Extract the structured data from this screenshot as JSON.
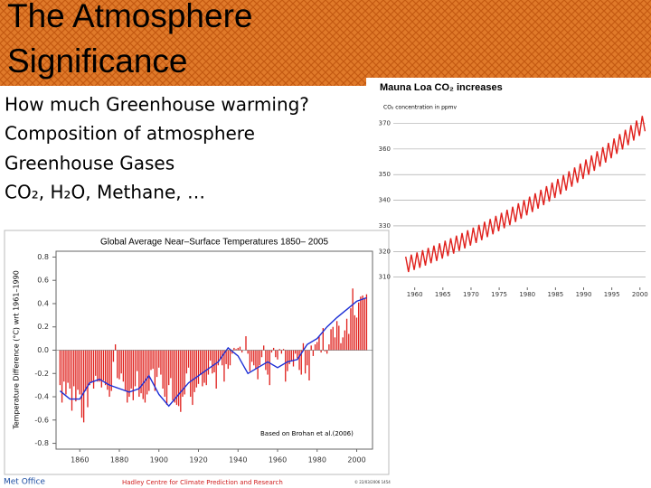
{
  "slide": {
    "title_lines": [
      "The Atmosphere",
      "Significance"
    ],
    "bullets": [
      "How much Greenhouse warming?",
      "Composition of atmosphere",
      "Greenhouse Gases",
      "CO₂, H₂O, Methane, …"
    ],
    "footer": {
      "left": "Met Office",
      "center": "Hadley Centre for Climate Prediction and Research",
      "stamp": "© 22/03/2006 1454"
    }
  },
  "chart_data": [
    {
      "type": "line",
      "title": "Mauna Loa CO₂ increases",
      "y_label": "CO₂ concentration in ppmv",
      "x": [
        1958.4,
        1958.9,
        1959.4,
        1959.9,
        1960.4,
        1960.9,
        1961.4,
        1961.9,
        1962.4,
        1962.9,
        1963.4,
        1963.9,
        1964.4,
        1964.9,
        1965.4,
        1965.9,
        1966.4,
        1966.9,
        1967.4,
        1967.9,
        1968.4,
        1968.9,
        1969.4,
        1969.9,
        1970.4,
        1970.9,
        1971.4,
        1971.9,
        1972.4,
        1972.9,
        1973.4,
        1973.9,
        1974.4,
        1974.9,
        1975.4,
        1975.9,
        1976.4,
        1976.9,
        1977.4,
        1977.9,
        1978.4,
        1978.9,
        1979.4,
        1979.9,
        1980.4,
        1980.9,
        1981.4,
        1981.9,
        1982.4,
        1982.9,
        1983.4,
        1983.9,
        1984.4,
        1984.9,
        1985.4,
        1985.9,
        1986.4,
        1986.9,
        1987.4,
        1987.9,
        1988.4,
        1988.9,
        1989.4,
        1989.9,
        1990.4,
        1990.9,
        1991.4,
        1991.9,
        1992.4,
        1992.9,
        1993.4,
        1993.9,
        1994.4,
        1994.9,
        1995.4,
        1995.9,
        1996.4,
        1996.9,
        1997.4,
        1997.9,
        1998.4,
        1998.9,
        1999.4,
        1999.9,
        2000.4,
        2000.9
      ],
      "series": [
        {
          "color": "#e0201c",
          "values": [
            318.0,
            312.0,
            318.8,
            312.8,
            319.6,
            313.6,
            320.5,
            314.5,
            321.4,
            315.4,
            322.3,
            316.3,
            323.2,
            317.2,
            324.2,
            318.2,
            325.2,
            319.2,
            326.2,
            320.2,
            327.2,
            321.2,
            328.3,
            322.3,
            329.3,
            323.3,
            330.4,
            324.4,
            331.6,
            325.6,
            332.7,
            326.7,
            333.9,
            327.9,
            335.1,
            329.1,
            336.3,
            330.3,
            337.5,
            331.5,
            338.8,
            332.8,
            340.1,
            334.1,
            341.4,
            335.4,
            342.7,
            336.7,
            344.1,
            338.1,
            345.5,
            339.5,
            346.9,
            340.9,
            348.3,
            342.3,
            349.8,
            343.8,
            351.3,
            345.3,
            352.8,
            346.8,
            354.3,
            348.3,
            355.9,
            349.9,
            357.5,
            351.5,
            359.1,
            353.1,
            360.7,
            354.7,
            362.4,
            356.4,
            364.1,
            358.1,
            365.8,
            359.8,
            367.5,
            361.5,
            369.3,
            363.3,
            371.1,
            365.1,
            372.9,
            366.9
          ]
        }
      ],
      "xlim": [
        1957,
        2001
      ],
      "xticks": [
        1960,
        1965,
        1970,
        1975,
        1980,
        1985,
        1990,
        1995,
        2000
      ],
      "ylim": [
        306,
        373
      ],
      "yticks": [
        310,
        320,
        330,
        340,
        350,
        360,
        370
      ],
      "grid": true
    },
    {
      "type": "bar",
      "title": "Global Average Near–Surface Temperatures 1850– 2005",
      "y_label": "Temperature Difference (°C) wrt 1961–1990",
      "annotation": "Based on Brohan et al.(2006)",
      "x": [
        1850,
        1851,
        1852,
        1853,
        1854,
        1855,
        1856,
        1857,
        1858,
        1859,
        1860,
        1861,
        1862,
        1863,
        1864,
        1865,
        1866,
        1867,
        1868,
        1869,
        1870,
        1871,
        1872,
        1873,
        1874,
        1875,
        1876,
        1877,
        1878,
        1879,
        1880,
        1881,
        1882,
        1883,
        1884,
        1885,
        1886,
        1887,
        1888,
        1889,
        1890,
        1891,
        1892,
        1893,
        1894,
        1895,
        1896,
        1897,
        1898,
        1899,
        1900,
        1901,
        1902,
        1903,
        1904,
        1905,
        1906,
        1907,
        1908,
        1909,
        1910,
        1911,
        1912,
        1913,
        1914,
        1915,
        1916,
        1917,
        1918,
        1919,
        1920,
        1921,
        1922,
        1923,
        1924,
        1925,
        1926,
        1927,
        1928,
        1929,
        1930,
        1931,
        1932,
        1933,
        1934,
        1935,
        1936,
        1937,
        1938,
        1939,
        1940,
        1941,
        1942,
        1943,
        1944,
        1945,
        1946,
        1947,
        1948,
        1949,
        1950,
        1951,
        1952,
        1953,
        1954,
        1955,
        1956,
        1957,
        1958,
        1959,
        1960,
        1961,
        1962,
        1963,
        1964,
        1965,
        1966,
        1967,
        1968,
        1969,
        1970,
        1971,
        1972,
        1973,
        1974,
        1975,
        1976,
        1977,
        1978,
        1979,
        1980,
        1981,
        1982,
        1983,
        1984,
        1985,
        1986,
        1987,
        1988,
        1989,
        1990,
        1991,
        1992,
        1993,
        1994,
        1995,
        1996,
        1997,
        1998,
        1999,
        2000,
        2001,
        2002,
        2003,
        2004,
        2005
      ],
      "series": [
        {
          "color": "#e0201c",
          "values": [
            -0.3,
            -0.45,
            -0.27,
            -0.38,
            -0.28,
            -0.33,
            -0.52,
            -0.31,
            -0.44,
            -0.34,
            -0.38,
            -0.58,
            -0.62,
            -0.35,
            -0.49,
            -0.3,
            -0.28,
            -0.33,
            -0.22,
            -0.27,
            -0.27,
            -0.32,
            -0.26,
            -0.3,
            -0.34,
            -0.4,
            -0.35,
            -0.1,
            0.05,
            -0.24,
            -0.25,
            -0.2,
            -0.27,
            -0.35,
            -0.45,
            -0.4,
            -0.33,
            -0.43,
            -0.31,
            -0.18,
            -0.4,
            -0.37,
            -0.42,
            -0.45,
            -0.38,
            -0.35,
            -0.17,
            -0.16,
            -0.35,
            -0.23,
            -0.15,
            -0.21,
            -0.33,
            -0.4,
            -0.47,
            -0.3,
            -0.24,
            -0.43,
            -0.45,
            -0.47,
            -0.48,
            -0.53,
            -0.4,
            -0.38,
            -0.2,
            -0.15,
            -0.4,
            -0.47,
            -0.36,
            -0.32,
            -0.29,
            -0.21,
            -0.31,
            -0.28,
            -0.3,
            -0.21,
            -0.09,
            -0.2,
            -0.19,
            -0.33,
            -0.13,
            -0.08,
            -0.13,
            -0.27,
            -0.12,
            -0.16,
            -0.13,
            -0.03,
            0.02,
            0.01,
            0.02,
            0.03,
            -0.02,
            0.0,
            0.12,
            -0.03,
            -0.18,
            -0.1,
            -0.13,
            -0.16,
            -0.25,
            -0.13,
            -0.06,
            0.04,
            -0.17,
            -0.21,
            -0.3,
            -0.02,
            0.02,
            -0.06,
            -0.08,
            0.01,
            -0.03,
            0.01,
            -0.27,
            -0.18,
            -0.12,
            -0.09,
            -0.14,
            -0.03,
            -0.07,
            -0.17,
            -0.21,
            0.06,
            -0.2,
            -0.13,
            -0.26,
            0.04,
            -0.05,
            0.05,
            0.07,
            0.12,
            -0.02,
            0.19,
            -0.01,
            -0.03,
            0.05,
            0.18,
            0.2,
            0.11,
            0.25,
            0.21,
            0.06,
            0.11,
            0.17,
            0.27,
            0.14,
            0.36,
            0.53,
            0.3,
            0.28,
            0.41,
            0.46,
            0.47,
            0.45,
            0.48
          ]
        },
        {
          "type": "line",
          "color": "#1c2fd6",
          "x": [
            1850,
            1855,
            1860,
            1865,
            1870,
            1875,
            1880,
            1885,
            1890,
            1895,
            1900,
            1905,
            1910,
            1915,
            1920,
            1925,
            1930,
            1935,
            1940,
            1945,
            1950,
            1955,
            1960,
            1965,
            1970,
            1975,
            1980,
            1985,
            1990,
            1995,
            2000,
            2005
          ],
          "values": [
            -0.35,
            -0.42,
            -0.42,
            -0.28,
            -0.25,
            -0.3,
            -0.33,
            -0.36,
            -0.33,
            -0.22,
            -0.38,
            -0.48,
            -0.38,
            -0.28,
            -0.22,
            -0.16,
            -0.1,
            0.02,
            -0.05,
            -0.2,
            -0.15,
            -0.1,
            -0.15,
            -0.1,
            -0.08,
            0.05,
            0.1,
            0.2,
            0.28,
            0.35,
            0.42,
            0.45
          ]
        }
      ],
      "xlim": [
        1848,
        2008
      ],
      "xticks": [
        1860,
        1880,
        1900,
        1920,
        1940,
        1960,
        1980,
        2000
      ],
      "ylim": [
        -0.85,
        0.85
      ],
      "yticks": [
        0.8,
        0.6,
        0.4,
        0.2,
        {
          "value": 0,
          "label": "0.0"
        },
        -0.2,
        -0.4,
        -0.6,
        -0.8
      ],
      "grid": false
    }
  ]
}
